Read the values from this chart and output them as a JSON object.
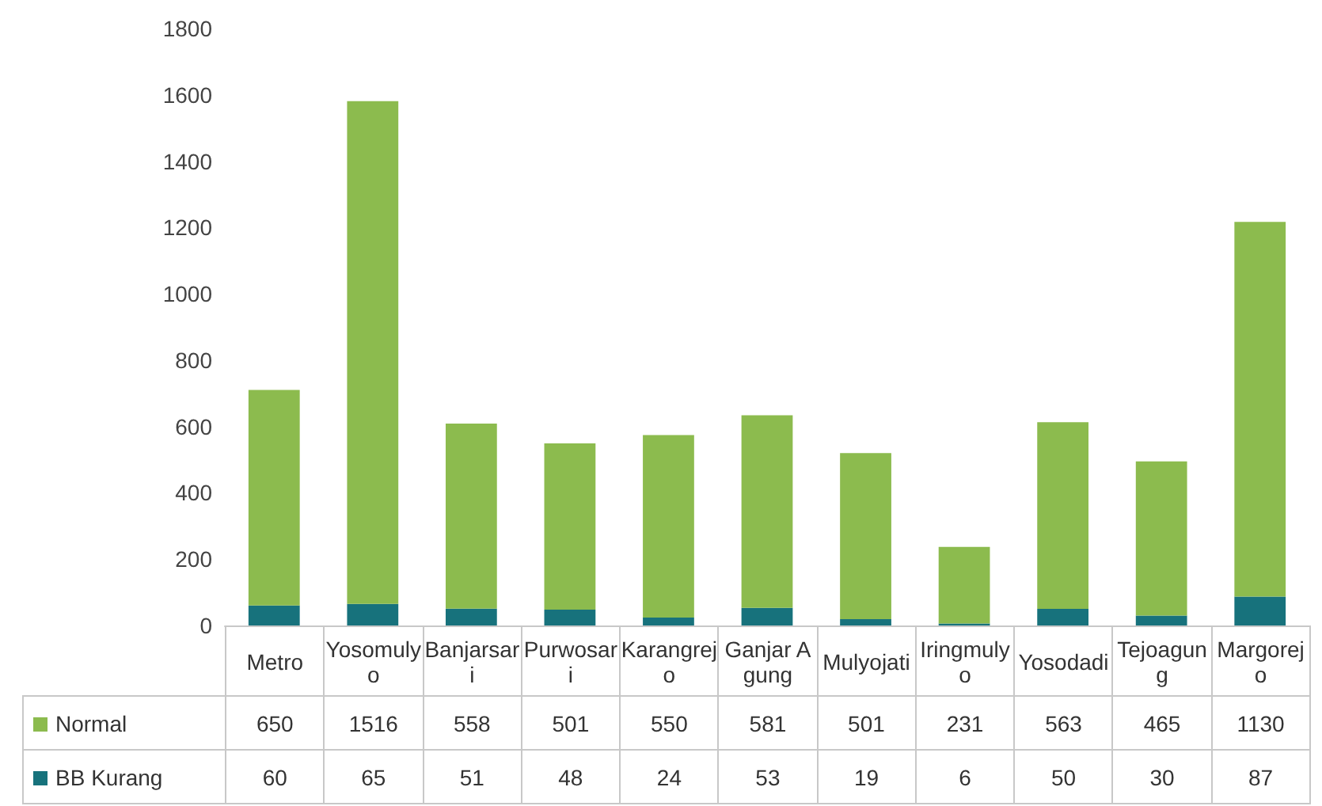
{
  "chart_data": {
    "type": "bar",
    "stacked": true,
    "categories": [
      "Metro",
      "Yosomulyo",
      "Banjarsari",
      "Purwosari",
      "Karangrejo",
      "Ganjar Agung",
      "Mulyojati",
      "Iringmulyo",
      "Yosodadi",
      "Tejoagung",
      "Margorejo"
    ],
    "series": [
      {
        "name": "BB Kurang",
        "color": "#17727c",
        "values": [
          60,
          65,
          51,
          48,
          24,
          53,
          19,
          6,
          50,
          30,
          87
        ]
      },
      {
        "name": "Normal",
        "color": "#8cbb4e",
        "values": [
          650,
          1516,
          558,
          501,
          550,
          581,
          501,
          231,
          563,
          465,
          1130
        ]
      }
    ],
    "ylim": [
      0,
      1800
    ],
    "yticks": [
      0,
      200,
      400,
      600,
      800,
      1000,
      1200,
      1400,
      1600,
      1800
    ],
    "data_labels": true,
    "legend": "bottom"
  }
}
